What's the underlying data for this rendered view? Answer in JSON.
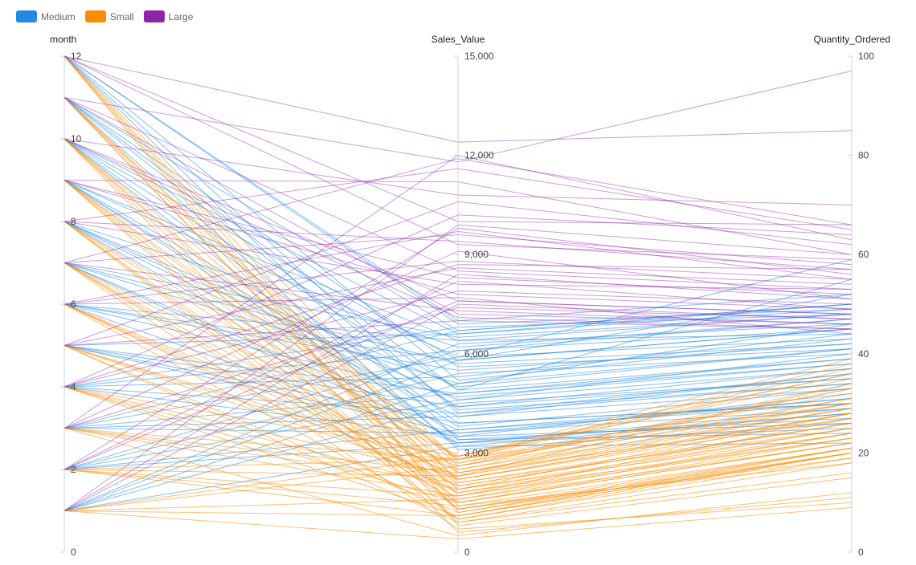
{
  "legend": {
    "items": [
      {
        "label": "Medium",
        "color": "#2389e3"
      },
      {
        "label": "Small",
        "color": "#ff8c00"
      },
      {
        "label": "Large",
        "color": "#8e24aa"
      }
    ]
  },
  "chart_data": {
    "type": "parallel-coordinates",
    "axes": [
      {
        "name": "month",
        "min": 0,
        "max": 12,
        "ticks": [
          "0",
          "2",
          "4",
          "6",
          "8",
          "10",
          "12"
        ],
        "tick_values": [
          0,
          2,
          4,
          6,
          8,
          10,
          12
        ]
      },
      {
        "name": "Sales_Value",
        "min": 0,
        "max": 15000,
        "ticks": [
          "0",
          "3,000",
          "6,000",
          "9,000",
          "12,000",
          "15,000"
        ],
        "tick_values": [
          0,
          3000,
          6000,
          9000,
          12000,
          15000
        ]
      },
      {
        "name": "Quantity_Ordered",
        "min": 0,
        "max": 100,
        "ticks": [
          "0",
          "20",
          "40",
          "60",
          "80",
          "100"
        ],
        "tick_values": [
          0,
          20,
          40,
          60,
          80,
          100
        ]
      }
    ],
    "series": [
      {
        "name": "Medium",
        "color": "#2389e3",
        "lines": [
          [
            12,
            4200,
            34
          ],
          [
            11,
            5600,
            41
          ],
          [
            10,
            3900,
            30
          ],
          [
            9,
            6400,
            44
          ],
          [
            8,
            3300,
            29
          ],
          [
            7,
            5100,
            46
          ],
          [
            6,
            4700,
            38
          ],
          [
            5,
            3600,
            31
          ],
          [
            4,
            6800,
            48
          ],
          [
            3,
            4100,
            36
          ],
          [
            2,
            5400,
            40
          ],
          [
            1,
            3200,
            28
          ],
          [
            12,
            6900,
            49
          ],
          [
            11,
            3100,
            26
          ],
          [
            10,
            5800,
            45
          ],
          [
            9,
            4400,
            35
          ],
          [
            8,
            6200,
            47
          ],
          [
            7,
            3700,
            30
          ],
          [
            6,
            5500,
            42
          ],
          [
            5,
            6600,
            50
          ],
          [
            4,
            3500,
            32
          ],
          [
            3,
            5900,
            43
          ],
          [
            2,
            4600,
            37
          ],
          [
            1,
            6300,
            46
          ],
          [
            12,
            3400,
            27
          ],
          [
            11,
            6700,
            50
          ],
          [
            10,
            4900,
            39
          ],
          [
            9,
            3800,
            33
          ],
          [
            8,
            5000,
            41
          ],
          [
            7,
            6500,
            48
          ],
          [
            6,
            3300,
            28
          ],
          [
            5,
            4800,
            38
          ],
          [
            4,
            5300,
            44
          ],
          [
            3,
            3600,
            29
          ],
          [
            2,
            6100,
            47
          ],
          [
            1,
            4500,
            35
          ],
          [
            12,
            5200,
            43
          ],
          [
            11,
            4300,
            34
          ],
          [
            10,
            6600,
            49
          ],
          [
            9,
            3500,
            26
          ],
          [
            8,
            4600,
            40
          ],
          [
            7,
            5700,
            42
          ],
          [
            6,
            6400,
            48
          ],
          [
            5,
            3900,
            30
          ],
          [
            4,
            4200,
            36
          ],
          [
            3,
            6700,
            50
          ],
          [
            2,
            3700,
            31
          ],
          [
            1,
            5800,
            45
          ],
          [
            12,
            7000,
            52
          ],
          [
            11,
            4900,
            55
          ],
          [
            10,
            3200,
            22
          ],
          [
            9,
            5900,
            59
          ],
          [
            8,
            4100,
            33
          ],
          [
            7,
            3400,
            24
          ],
          [
            6,
            5800,
            52
          ],
          [
            5,
            4400,
            37
          ],
          [
            4,
            6100,
            45
          ],
          [
            3,
            4800,
            39
          ],
          [
            2,
            3300,
            25
          ],
          [
            1,
            5100,
            41
          ]
        ]
      },
      {
        "name": "Small",
        "color": "#ff8c00",
        "lines": [
          [
            12,
            2100,
            25
          ],
          [
            11,
            1500,
            22
          ],
          [
            10,
            2800,
            30
          ],
          [
            9,
            900,
            18
          ],
          [
            8,
            2400,
            27
          ],
          [
            7,
            1800,
            23
          ],
          [
            6,
            2600,
            33
          ],
          [
            5,
            1200,
            20
          ],
          [
            4,
            2900,
            36
          ],
          [
            3,
            1700,
            24
          ],
          [
            2,
            2300,
            28
          ],
          [
            1,
            1100,
            21
          ],
          [
            12,
            2700,
            31
          ],
          [
            11,
            2000,
            26
          ],
          [
            10,
            1300,
            20
          ],
          [
            9,
            2500,
            29
          ],
          [
            8,
            1600,
            22
          ],
          [
            7,
            2900,
            35
          ],
          [
            6,
            1000,
            19
          ],
          [
            5,
            2200,
            27
          ],
          [
            4,
            1900,
            25
          ],
          [
            3,
            2800,
            32
          ],
          [
            2,
            1400,
            21
          ],
          [
            1,
            2600,
            30
          ],
          [
            12,
            1700,
            23
          ],
          [
            11,
            2600,
            34
          ],
          [
            10,
            2200,
            28
          ],
          [
            9,
            1300,
            21
          ],
          [
            8,
            2900,
            37
          ],
          [
            7,
            1500,
            22
          ],
          [
            6,
            2300,
            29
          ],
          [
            5,
            2700,
            33
          ],
          [
            4,
            1100,
            20
          ],
          [
            3,
            2100,
            26
          ],
          [
            2,
            2800,
            38
          ],
          [
            1,
            1600,
            24
          ],
          [
            12,
            1200,
            21
          ],
          [
            11,
            2400,
            30
          ],
          [
            10,
            1900,
            24
          ],
          [
            9,
            2800,
            36
          ],
          [
            8,
            1000,
            20
          ],
          [
            7,
            2200,
            28
          ],
          [
            6,
            1800,
            25
          ],
          [
            5,
            2500,
            31
          ],
          [
            4,
            1500,
            23
          ],
          [
            3,
            2400,
            29
          ],
          [
            2,
            1100,
            20
          ],
          [
            1,
            2900,
            39
          ],
          [
            12,
            800,
            15
          ],
          [
            11,
            1400,
            18
          ],
          [
            10,
            600,
            11
          ],
          [
            9,
            1900,
            28
          ],
          [
            8,
            1300,
            19
          ],
          [
            7,
            700,
            10
          ],
          [
            6,
            2000,
            26
          ],
          [
            5,
            900,
            16
          ],
          [
            4,
            2300,
            34
          ],
          [
            3,
            500,
            12
          ],
          [
            2,
            1700,
            27
          ],
          [
            1,
            400,
            9
          ]
        ]
      },
      {
        "name": "Large",
        "color": "#8e24aa",
        "lines": [
          [
            12,
            10000,
            66
          ],
          [
            11,
            8500,
            53
          ],
          [
            10,
            7600,
            48
          ],
          [
            9,
            11200,
            60
          ],
          [
            8,
            9400,
            57
          ],
          [
            7,
            7300,
            46
          ],
          [
            6,
            8800,
            55
          ],
          [
            5,
            10600,
            62
          ],
          [
            4,
            7900,
            50
          ],
          [
            3,
            9100,
            51
          ],
          [
            2,
            8200,
            49
          ],
          [
            1,
            7500,
            47
          ],
          [
            12,
            12400,
            85
          ],
          [
            11,
            11800,
            97
          ],
          [
            10,
            7100,
            45
          ],
          [
            9,
            8300,
            52
          ],
          [
            8,
            11600,
            65
          ],
          [
            7,
            9600,
            58
          ],
          [
            6,
            7700,
            44
          ],
          [
            5,
            8600,
            54
          ],
          [
            4,
            10200,
            64
          ],
          [
            3,
            7400,
            47
          ],
          [
            2,
            9800,
            56
          ],
          [
            1,
            8400,
            51
          ],
          [
            12,
            9300,
            59
          ],
          [
            11,
            7200,
            46
          ],
          [
            10,
            10800,
            70
          ],
          [
            9,
            7800,
            49
          ],
          [
            8,
            8100,
            53
          ],
          [
            7,
            11900,
            66
          ],
          [
            6,
            9700,
            55
          ],
          [
            5,
            7000,
            45
          ],
          [
            4,
            8700,
            57
          ],
          [
            3,
            12000,
            63
          ],
          [
            2,
            7600,
            48
          ],
          [
            1,
            9900,
            60
          ]
        ]
      }
    ]
  }
}
